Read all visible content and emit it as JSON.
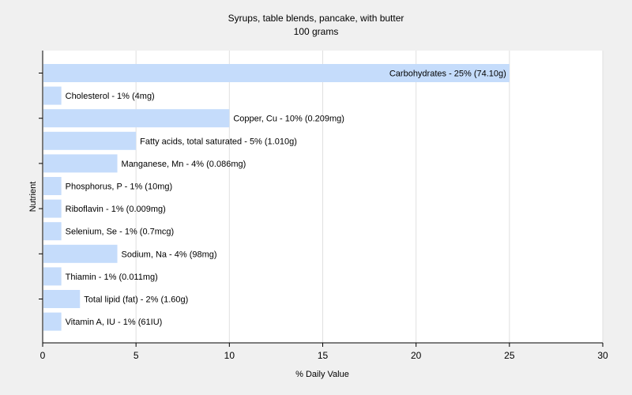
{
  "chart_data": {
    "type": "bar",
    "orientation": "horizontal",
    "title": "Syrups, table blends, pancake, with butter",
    "subtitle": "100 grams",
    "xlabel": "% Daily Value",
    "ylabel": "Nutrient",
    "xlim": [
      0,
      30
    ],
    "xticks": [
      0,
      5,
      10,
      15,
      20,
      25,
      30
    ],
    "grid": true,
    "legend": "none",
    "bar_color": "#c5dcfb",
    "categories": [
      "Carbohydrates",
      "Cholesterol",
      "Copper, Cu",
      "Fatty acids, total saturated",
      "Manganese, Mn",
      "Phosphorus, P",
      "Riboflavin",
      "Selenium, Se",
      "Sodium, Na",
      "Thiamin",
      "Total lipid (fat)",
      "Vitamin A, IU"
    ],
    "values": [
      25,
      1,
      10,
      5,
      4,
      1,
      1,
      1,
      4,
      1,
      2,
      1
    ],
    "labels": [
      "Carbohydrates - 25% (74.10g)",
      "Cholesterol - 1% (4mg)",
      "Copper, Cu - 10% (0.209mg)",
      "Fatty acids, total saturated - 5% (1.010g)",
      "Manganese, Mn - 4% (0.086mg)",
      "Phosphorus, P - 1% (10mg)",
      "Riboflavin - 1% (0.009mg)",
      "Selenium, Se - 1% (0.7mcg)",
      "Sodium, Na - 4% (98mg)",
      "Thiamin - 1% (0.011mg)",
      "Total lipid (fat) - 2% (1.60g)",
      "Vitamin A, IU - 1% (61IU)"
    ]
  }
}
